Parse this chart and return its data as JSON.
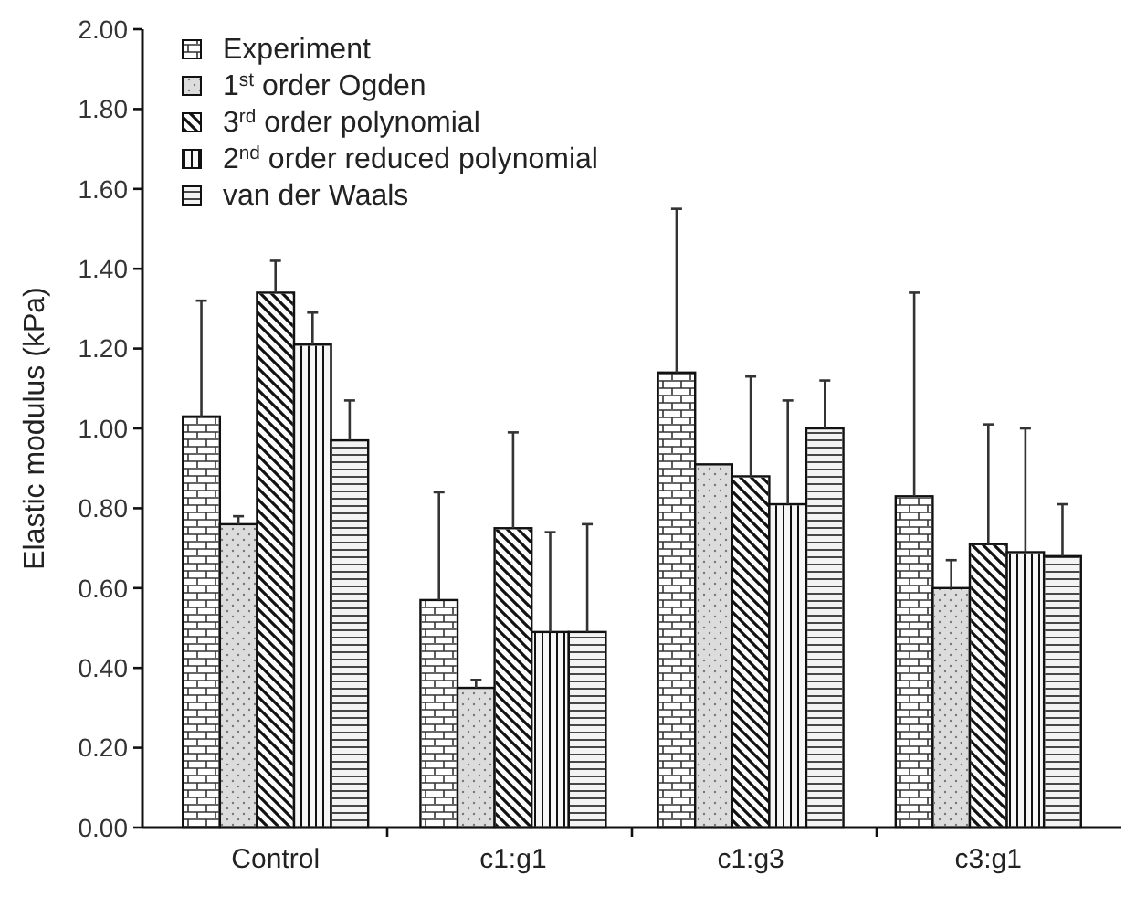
{
  "chart_data": {
    "type": "bar",
    "ylabel": "Elastic modulus (kPa)",
    "categories": [
      "Control",
      "c1:g1",
      "c1:g3",
      "c3:g1"
    ],
    "ylim": [
      0,
      2
    ],
    "yticks": [
      {
        "value": 0,
        "label": "0.00"
      },
      {
        "value": 0.2,
        "label": "0.20"
      },
      {
        "value": 0.4,
        "label": "0.40"
      },
      {
        "value": 0.6,
        "label": "0.60"
      },
      {
        "value": 0.8,
        "label": "0.80"
      },
      {
        "value": 1,
        "label": "1.00"
      },
      {
        "value": 1.2,
        "label": "1.20"
      },
      {
        "value": 1.4,
        "label": "1.40"
      },
      {
        "value": 1.6,
        "label": "1.60"
      },
      {
        "value": 1.8,
        "label": "1.80"
      },
      {
        "value": 2,
        "label": "2.00"
      }
    ],
    "legend": "top left",
    "grid": false,
    "series": [
      {
        "name": "Experiment",
        "color": "#ffffff",
        "values": [
          1.03,
          0.57,
          1.14,
          0.83
        ],
        "errors": [
          [
            1.03,
            1.32
          ],
          [
            0.57,
            0.84
          ],
          [
            1.14,
            1.55
          ],
          [
            0.83,
            1.34
          ]
        ]
      },
      {
        "name": "1$^{st}$ order Ogden",
        "color": "#dcdcdc",
        "values": [
          0.76,
          0.35,
          0.91,
          0.6
        ],
        "errors": [
          [
            0.76,
            0.78
          ],
          [
            0.35,
            0.37
          ],
          null,
          [
            0.6,
            0.67
          ]
        ]
      },
      {
        "name": "3$^{rd}$ order polynomial",
        "color": "#fbfbfb",
        "values": [
          1.34,
          0.75,
          0.88,
          0.71
        ],
        "errors": [
          [
            1.34,
            1.42
          ],
          [
            0.75,
            0.99
          ],
          [
            0.88,
            1.13
          ],
          [
            0.71,
            1.01
          ]
        ]
      },
      {
        "name": "2$^{nd}$ order reduced polynomial",
        "color": "#f7f7f7",
        "values": [
          1.21,
          0.49,
          0.81,
          0.69
        ],
        "errors": [
          [
            1.21,
            1.29
          ],
          [
            0.49,
            0.74
          ],
          [
            0.81,
            1.07
          ],
          [
            0.69,
            1.0
          ]
        ]
      },
      {
        "name": "van der Waals",
        "color": "#f3f3f3",
        "values": [
          0.97,
          0.49,
          1.0,
          0.68
        ],
        "errors": [
          [
            0.97,
            1.07
          ],
          [
            0.49,
            0.76
          ],
          [
            1.0,
            1.12
          ],
          [
            0.68,
            0.81
          ]
        ]
      }
    ]
  }
}
